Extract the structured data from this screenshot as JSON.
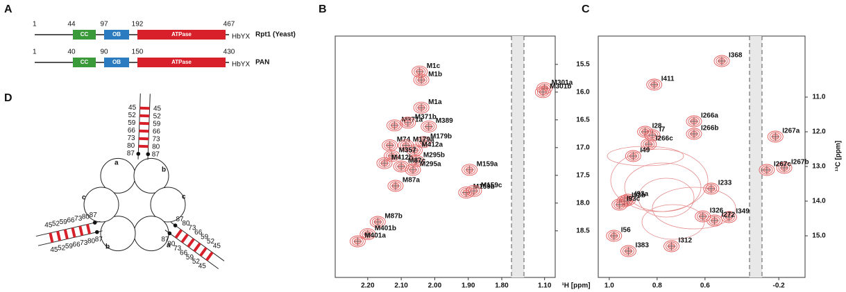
{
  "figure": {
    "panel_a": {
      "label": "A",
      "constructs": [
        {
          "name": "Rpt1 (Yeast)",
          "positions": [
            "1",
            "44",
            "97",
            "192",
            "467"
          ],
          "domains": [
            "CC",
            "OB",
            "ATPase"
          ],
          "motif": "HbYX"
        },
        {
          "name": "PAN",
          "positions": [
            "1",
            "40",
            "90",
            "150",
            "430"
          ],
          "domains": [
            "CC",
            "OB",
            "ATPase"
          ],
          "motif": "HbYX"
        }
      ]
    },
    "panel_d": {
      "label": "D",
      "ladder_numbers": [
        45,
        52,
        59,
        66,
        73,
        80,
        87
      ],
      "site_labels": [
        "a",
        "b",
        "c"
      ]
    }
  },
  "chart_data": [
    {
      "type": "scatter",
      "title": "B",
      "xlabel": "¹H [ppm]",
      "xlim": [
        [
          2.297,
          1.771
        ],
        [
          1.162,
          1.068
        ]
      ],
      "xticks": [
        {
          "value": 2.2,
          "label": "2.20"
        },
        {
          "value": 2.1,
          "label": "2.10"
        },
        {
          "value": 2.0,
          "label": "2.00"
        },
        {
          "value": 1.9,
          "label": "1.90"
        },
        {
          "value": 1.8,
          "label": "1.80"
        },
        {
          "value": 1.1,
          "label": "1.10"
        }
      ],
      "ylim": [
        14.99,
        19.34
      ],
      "yticks": [
        15.5,
        {
          "value": 16,
          "label": "16.0"
        },
        16.5,
        {
          "value": 17,
          "label": "17.0"
        },
        17.5,
        {
          "value": 18,
          "label": "18.0"
        },
        18.5
      ],
      "color": "#e05a5a",
      "labels": [
        "M1c",
        "M1b",
        "M301a",
        "M301b",
        "M1a",
        "M371a",
        "M371b",
        "M389",
        "M74",
        "M179b",
        "M179a",
        "M412a",
        "M357",
        "M412b",
        "M295b",
        "M87c",
        "M295a",
        "M87a",
        "M159a",
        "M159b",
        "M159c",
        "M87b",
        "M401b",
        "M401a"
      ],
      "x": [
        2.045,
        2.04,
        1.1,
        1.105,
        2.04,
        2.12,
        2.08,
        2.018,
        2.134,
        2.034,
        2.086,
        2.06,
        2.128,
        2.15,
        2.055,
        2.1,
        2.065,
        2.117,
        1.896,
        1.906,
        1.883,
        2.17,
        2.2,
        2.23
      ],
      "values": [
        15.63,
        15.78,
        15.93,
        16.0,
        16.28,
        16.6,
        16.55,
        16.62,
        16.96,
        16.9,
        16.96,
        17.05,
        17.15,
        17.28,
        17.24,
        17.34,
        17.4,
        17.69,
        17.4,
        17.81,
        17.78,
        18.34,
        18.56,
        18.69
      ]
    },
    {
      "type": "scatter",
      "title": "C",
      "ylabel": "¹³C [ppm]",
      "xlim": [
        [
          1.046,
          0.414
        ],
        [
          -0.13,
          -0.31
        ]
      ],
      "xticks": [
        {
          "value": 1.0,
          "label": "1.0"
        },
        0.8,
        0.6,
        -0.2
      ],
      "ylim": [
        9.24,
        16.2
      ],
      "yticks": [
        {
          "value": 11,
          "label": "11.0"
        },
        {
          "value": 12,
          "label": "12.0"
        },
        {
          "value": 13,
          "label": "13.0"
        },
        {
          "value": 14,
          "label": "14.0"
        },
        {
          "value": 15,
          "label": "15.0"
        }
      ],
      "color": "#e05a5a",
      "labels": [
        "I368",
        "I411",
        "I266a",
        "I266b",
        "I28",
        "I7",
        "I266c",
        "I49",
        "I267a",
        "I267b",
        "I267c",
        "I233",
        "I93a",
        "I93b",
        "I93c",
        "I326",
        "I349",
        "I272",
        "I56",
        "I312",
        "I383"
      ],
      "x": [
        0.53,
        0.812,
        0.646,
        0.646,
        0.85,
        0.82,
        0.835,
        0.9,
        -0.186,
        -0.223,
        -0.15,
        0.574,
        0.922,
        0.936,
        0.957,
        0.609,
        0.5,
        0.56,
        0.98,
        0.74,
        0.92
      ],
      "values": [
        9.96,
        10.64,
        11.7,
        12.06,
        12.0,
        12.1,
        12.36,
        12.7,
        12.14,
        13.04,
        13.1,
        13.64,
        13.96,
        14.0,
        14.1,
        14.44,
        14.46,
        14.56,
        15.0,
        15.3,
        15.44
      ]
    }
  ]
}
